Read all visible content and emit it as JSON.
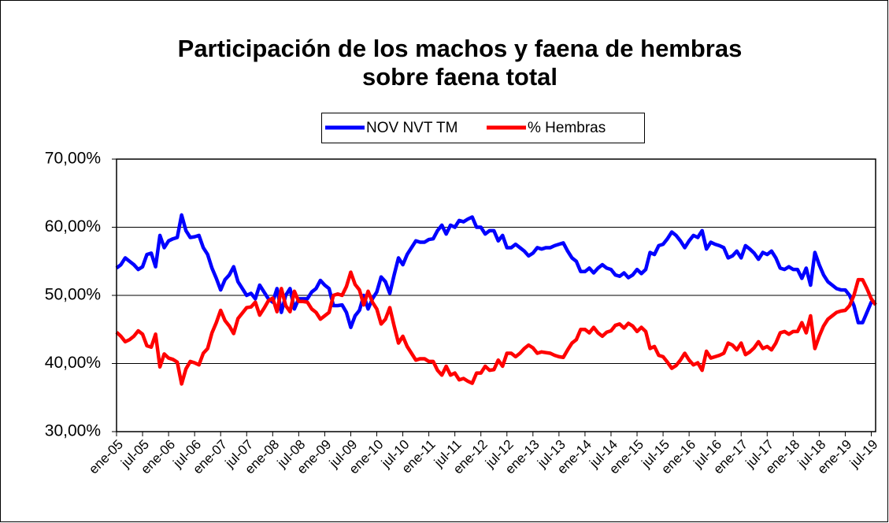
{
  "chart_data": {
    "type": "line",
    "title": [
      "Participación de los machos y faena de hembras",
      "sobre faena total"
    ],
    "categories": [
      "ene-05",
      null,
      null,
      null,
      null,
      null,
      "jul-05",
      null,
      null,
      null,
      null,
      null,
      "ene-06",
      null,
      null,
      null,
      null,
      null,
      "jul-06",
      null,
      null,
      null,
      null,
      null,
      "ene-07",
      null,
      null,
      null,
      null,
      null,
      "jul-07",
      null,
      null,
      null,
      null,
      null,
      "ene-08",
      null,
      null,
      null,
      null,
      null,
      "jul-08",
      null,
      null,
      null,
      null,
      null,
      "ene-09",
      null,
      null,
      null,
      null,
      null,
      "jul-09",
      null,
      null,
      null,
      null,
      null,
      "ene-10",
      null,
      null,
      null,
      null,
      null,
      "jul-10",
      null,
      null,
      null,
      null,
      null,
      "ene-11",
      null,
      null,
      null,
      null,
      null,
      "jul-11",
      null,
      null,
      null,
      null,
      null,
      "ene-12",
      null,
      null,
      null,
      null,
      null,
      "jul-12",
      null,
      null,
      null,
      null,
      null,
      "ene-13",
      null,
      null,
      null,
      null,
      null,
      "jul-13",
      null,
      null,
      null,
      null,
      null,
      "ene-14",
      null,
      null,
      null,
      null,
      null,
      "jul-14",
      null,
      null,
      null,
      null,
      null,
      "ene-15",
      null,
      null,
      null,
      null,
      null,
      "jul-15",
      null,
      null,
      null,
      null,
      null,
      "ene-16",
      null,
      null,
      null,
      null,
      null,
      "jul-16",
      null,
      null,
      null,
      null,
      null,
      "ene-17",
      null,
      null,
      null,
      null,
      null,
      "jul-17",
      null,
      null,
      null,
      null,
      null,
      "ene-18",
      null,
      null,
      null,
      null,
      null,
      "jul-18",
      null,
      null,
      null,
      null,
      null,
      "ene-19",
      null,
      null,
      null,
      null,
      null,
      "jul-19",
      null
    ],
    "series": [
      {
        "name": "NOV NVT TM",
        "color": "#0000ff",
        "values": [
          54,
          54.5,
          55.5,
          55,
          54.5,
          53.8,
          54.2,
          56,
          56.2,
          54.2,
          58.8,
          57,
          58,
          58.3,
          58.5,
          61.8,
          59.5,
          58.5,
          58.6,
          58.8,
          57,
          56,
          54,
          52.5,
          50.8,
          52.3,
          53,
          54.2,
          52,
          51,
          50,
          50.3,
          49.5,
          51.5,
          50.5,
          49.5,
          49,
          51,
          47.5,
          50,
          51,
          48,
          49.5,
          49.5,
          49.5,
          50.5,
          51,
          52.2,
          51.5,
          51,
          48.5,
          48.5,
          48.6,
          47.5,
          45.3,
          47,
          47.8,
          50,
          48,
          49.5,
          50.5,
          52.7,
          52,
          50.3,
          53,
          55.5,
          54.5,
          56,
          57,
          58,
          57.8,
          57.8,
          58.2,
          58.3,
          59.5,
          60.3,
          59,
          60.3,
          60,
          61,
          60.8,
          61.2,
          61.5,
          60,
          60,
          59,
          59.5,
          59.5,
          58,
          58.8,
          57,
          57,
          57.5,
          57,
          56.5,
          55.8,
          56.2,
          57,
          56.8,
          57,
          57,
          57.3,
          57.5,
          57.7,
          56.5,
          55.5,
          55,
          53.5,
          53.5,
          54,
          53.3,
          54,
          54.5,
          54,
          53.8,
          53,
          52.8,
          53.3,
          52.6,
          53,
          53.8,
          53.2,
          53.8,
          56.3,
          56,
          57.3,
          57.5,
          58.3,
          59.3,
          58.8,
          58,
          57,
          58,
          58.8,
          58.5,
          59.5,
          56.8,
          57.8,
          57.5,
          57.3,
          57,
          55.5,
          55.8,
          56.5,
          55.5,
          57.3,
          56.8,
          56.2,
          55.3,
          56.3,
          56,
          56.5,
          55.5,
          54,
          53.8,
          54.2,
          53.8,
          53.8,
          52.5,
          54,
          51.5,
          56.3,
          54.5,
          53,
          52,
          51.5,
          51,
          50.8,
          50.8,
          50,
          48.5,
          46,
          46,
          47.5,
          49,
          49
        ]
      },
      {
        "name": "% Hembras",
        "color": "#ff0000",
        "values": [
          44.6,
          44,
          43.2,
          43.5,
          44,
          44.8,
          44.3,
          42.6,
          42.4,
          44.3,
          39.5,
          41.4,
          40.8,
          40.6,
          40.2,
          37,
          39.2,
          40.3,
          40.1,
          39.8,
          41.5,
          42.2,
          44.5,
          46,
          47.8,
          46.3,
          45.5,
          44.4,
          46.6,
          47.4,
          48.2,
          48.3,
          49,
          47.1,
          48.1,
          49.2,
          49.6,
          47.6,
          51,
          48.5,
          47.6,
          50.6,
          49.1,
          49.1,
          49,
          48,
          47.5,
          46.5,
          47,
          47.5,
          50,
          50.2,
          50,
          51.3,
          53.4,
          51.6,
          50.8,
          48.6,
          50.6,
          49,
          48,
          45.8,
          46.5,
          48.2,
          45.5,
          43,
          44,
          42.5,
          41.5,
          40.5,
          40.7,
          40.7,
          40.3,
          40.3,
          39,
          38.3,
          39.6,
          38.3,
          38.6,
          37.6,
          37.8,
          37.4,
          37.1,
          38.6,
          38.6,
          39.6,
          39,
          39.1,
          40.5,
          39.6,
          41.5,
          41.5,
          41,
          41.5,
          42.2,
          42.7,
          42.3,
          41.5,
          41.7,
          41.6,
          41.5,
          41.2,
          41,
          40.9,
          42,
          43,
          43.5,
          45,
          45,
          44.5,
          45.3,
          44.5,
          44,
          44.6,
          44.8,
          45.6,
          45.8,
          45.2,
          45.9,
          45.5,
          44.7,
          45.3,
          44.7,
          42.2,
          42.5,
          41.2,
          41,
          40.2,
          39.3,
          39.7,
          40.5,
          41.5,
          40.5,
          39.8,
          40.1,
          39,
          41.8,
          40.8,
          41,
          41.2,
          41.5,
          43,
          42.7,
          42,
          43,
          41.3,
          41.7,
          42.3,
          43.2,
          42.2,
          42.5,
          42,
          43,
          44.5,
          44.7,
          44.3,
          44.7,
          44.7,
          46,
          44.5,
          47,
          42.2,
          44,
          45.5,
          46.5,
          47,
          47.5,
          47.7,
          47.8,
          48.5,
          50,
          52.3,
          52.3,
          51,
          49.5,
          48.6
        ]
      }
    ],
    "ylim": [
      30,
      70
    ],
    "yticks": [
      {
        "value": 30,
        "label": "30,00%"
      },
      {
        "value": 40,
        "label": "40,00%"
      },
      {
        "value": 50,
        "label": "50,00%"
      },
      {
        "value": 60,
        "label": "60,00%"
      },
      {
        "value": 70,
        "label": "70,00%"
      }
    ],
    "grid": true,
    "legend": "top"
  }
}
